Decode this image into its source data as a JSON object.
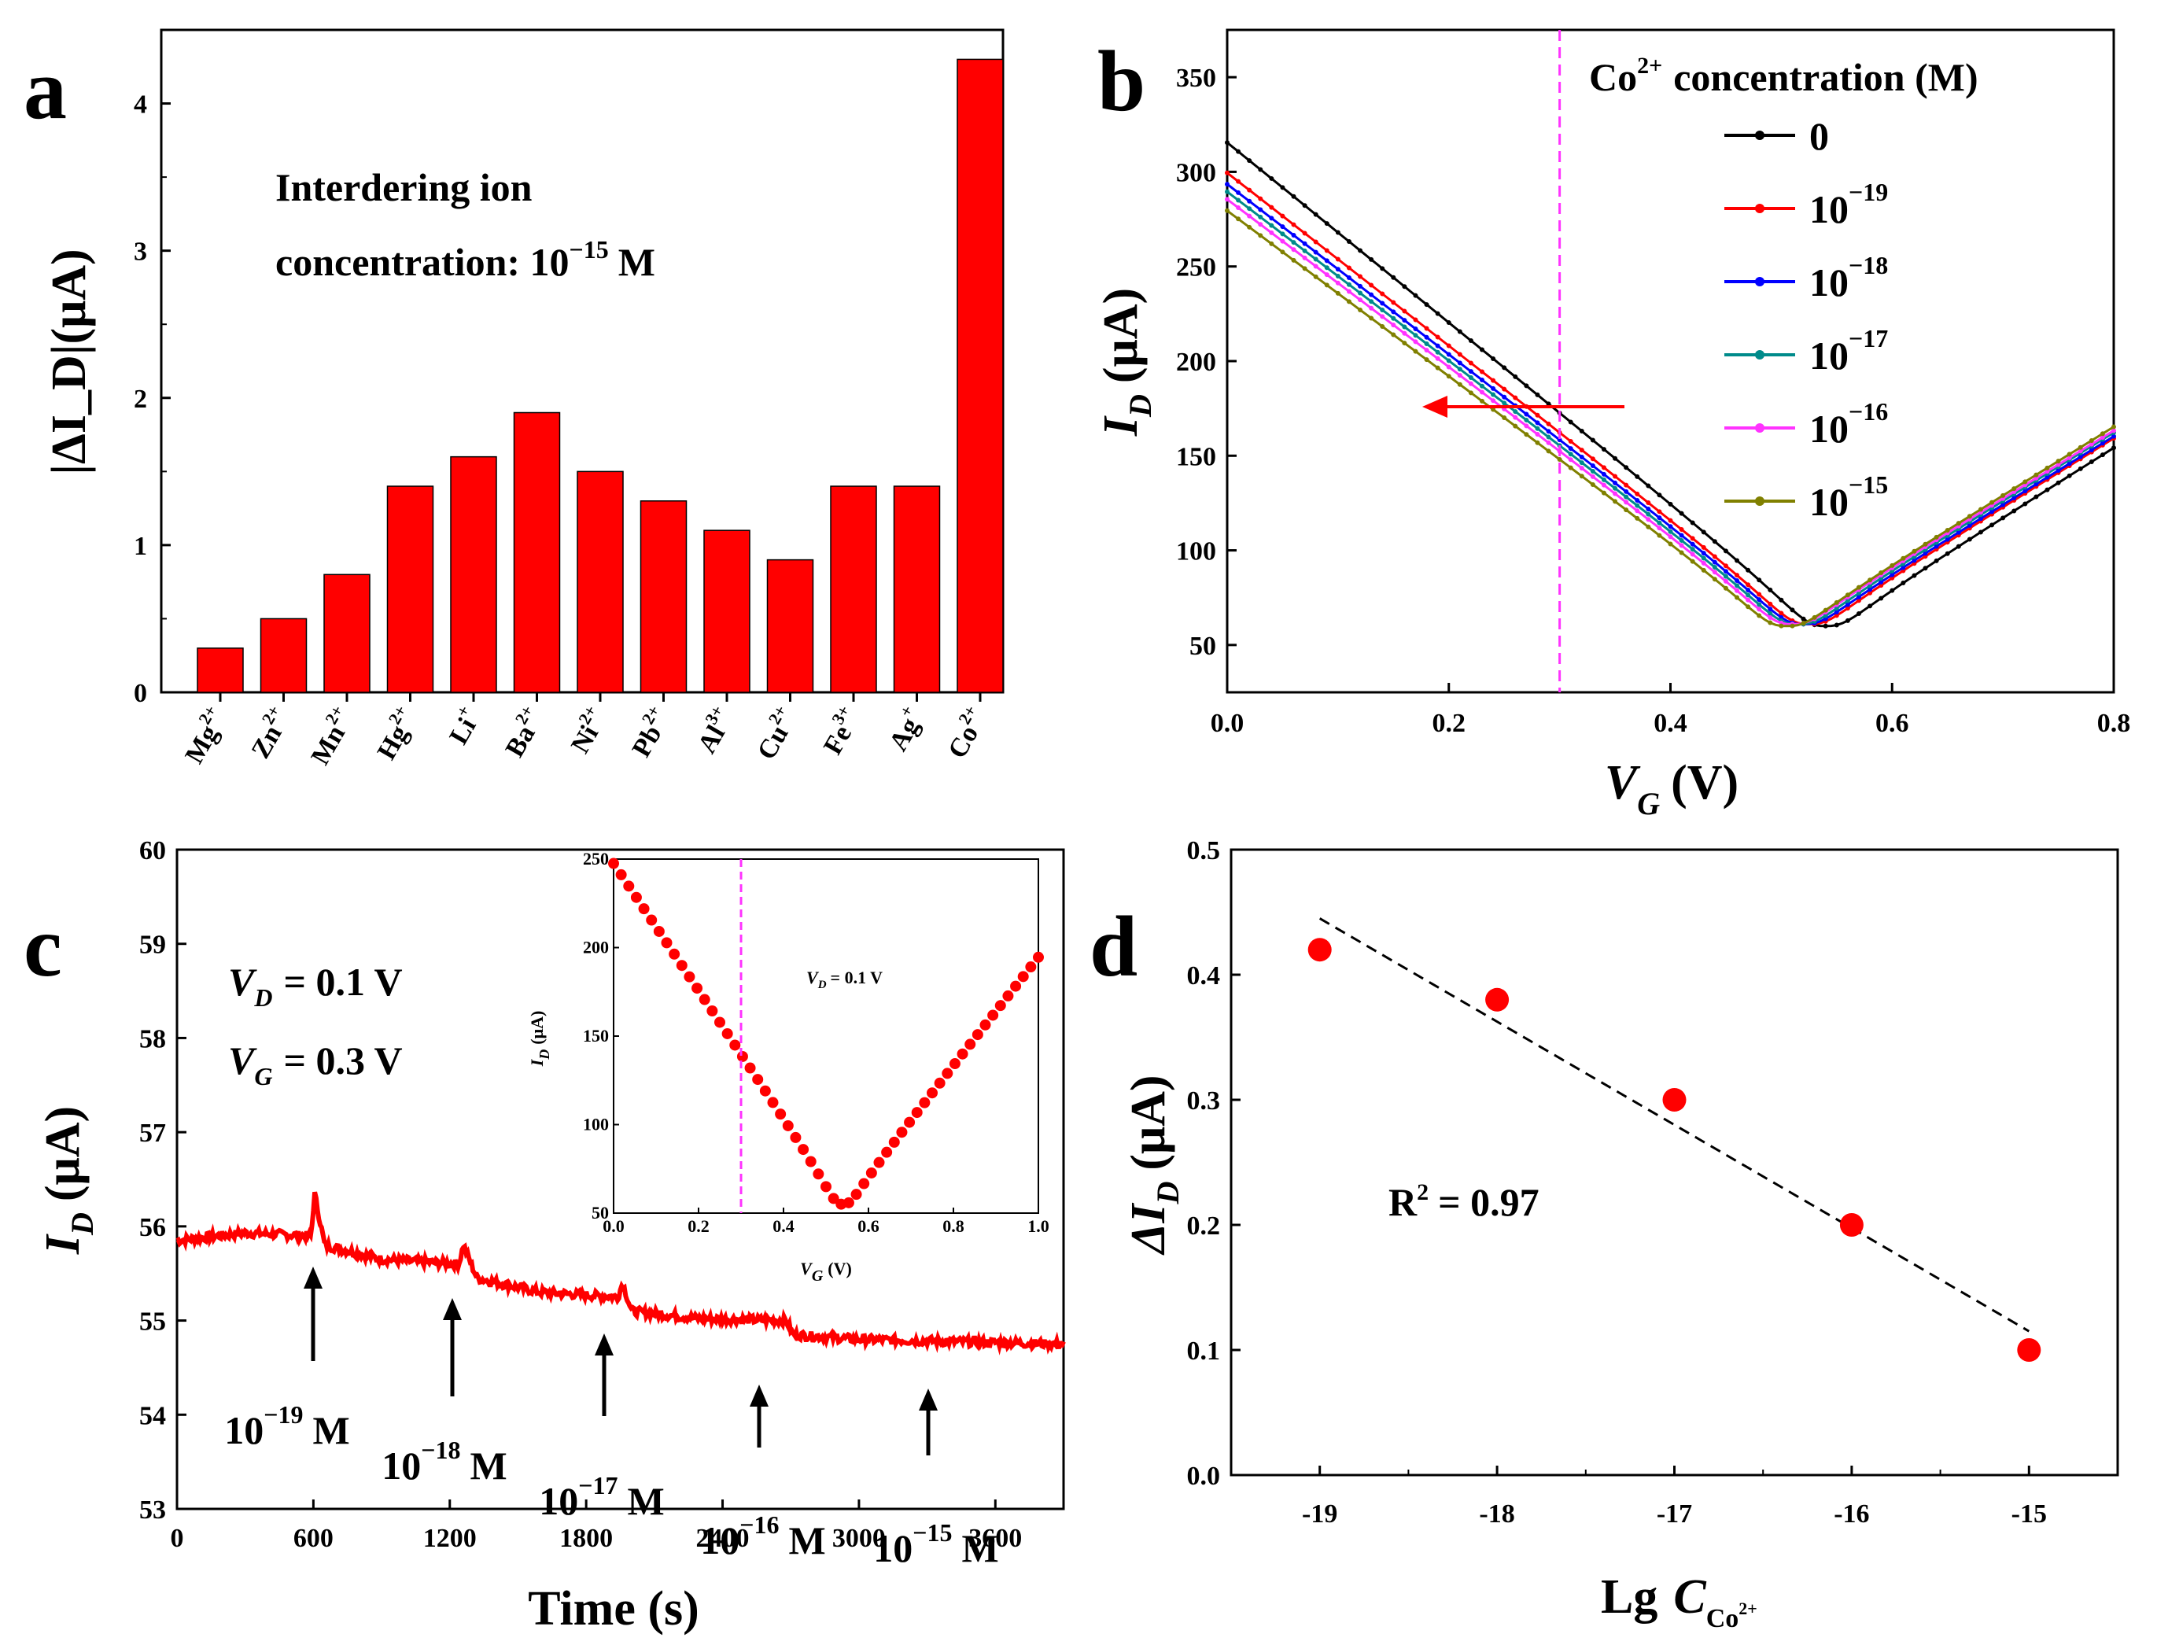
{
  "colors": {
    "red": "#ff0000",
    "magenta": "#ff33ff",
    "black": "#000000"
  },
  "chart_data": [
    {
      "panel": "a",
      "type": "bar",
      "annotation_line1": "Interdering ion",
      "annotation_line2": "concentration: 10",
      "annotation_exp": "−15",
      "annotation_unit": "M",
      "ylabel": "|ΔI_D|(μA)",
      "ylim": [
        0,
        4.5
      ],
      "yticks": [
        "0",
        "1",
        "2",
        "3",
        "4"
      ],
      "categories": [
        {
          "ion": "Mg",
          "charge": "2+",
          "value": 0.3
        },
        {
          "ion": "Zn",
          "charge": "2+",
          "value": 0.5
        },
        {
          "ion": "Mn",
          "charge": "2+",
          "value": 0.8
        },
        {
          "ion": "Hg",
          "charge": "2+",
          "value": 1.4
        },
        {
          "ion": "Li",
          "charge": "+",
          "value": 1.6
        },
        {
          "ion": "Ba",
          "charge": "2+",
          "value": 1.9
        },
        {
          "ion": "Ni",
          "charge": "2+",
          "value": 1.5
        },
        {
          "ion": "Pb",
          "charge": "2+",
          "value": 1.3
        },
        {
          "ion": "Al",
          "charge": "3+",
          "value": 1.1
        },
        {
          "ion": "Cu",
          "charge": "2+",
          "value": 0.9
        },
        {
          "ion": "Fe",
          "charge": "3+",
          "value": 1.4
        },
        {
          "ion": "Ag",
          "charge": "+",
          "value": 1.4
        },
        {
          "ion": "Co",
          "charge": "2+",
          "value": 4.3
        }
      ]
    },
    {
      "panel": "b",
      "type": "line",
      "xlabel_var": "V",
      "xlabel_sub": "G",
      "xlabel_unit": "(V)",
      "ylabel_var": "I",
      "ylabel_sub": "D",
      "ylabel_unit": "(μA)",
      "xlim": [
        0,
        0.8
      ],
      "ylim": [
        25,
        375
      ],
      "xticks": [
        "0.0",
        "0.2",
        "0.4",
        "0.6",
        "0.8"
      ],
      "yticks": [
        "50",
        "100",
        "150",
        "200",
        "250",
        "300",
        "350"
      ],
      "vline_x": 0.3,
      "legend_title_pre": "Co",
      "legend_title_sup": "2+",
      "legend_title_post": "concentration (M)",
      "series": [
        {
          "name": "0",
          "exp": "",
          "color": "#000000",
          "y0": 316,
          "xmin": 0.54,
          "ymin": 60,
          "y08": 155
        },
        {
          "name": "10",
          "exp": "−19",
          "color": "#ff0000",
          "y0": 300,
          "xmin": 0.525,
          "ymin": 61,
          "y08": 160
        },
        {
          "name": "10",
          "exp": "−18",
          "color": "#0000ff",
          "y0": 294,
          "xmin": 0.52,
          "ymin": 61,
          "y08": 161
        },
        {
          "name": "10",
          "exp": "−17",
          "color": "#008b8b",
          "y0": 290,
          "xmin": 0.515,
          "ymin": 61,
          "y08": 163
        },
        {
          "name": "10",
          "exp": "−16",
          "color": "#ff33ff",
          "y0": 286,
          "xmin": 0.51,
          "ymin": 61,
          "y08": 164
        },
        {
          "name": "10",
          "exp": "−15",
          "color": "#808000",
          "y0": 280,
          "xmin": 0.505,
          "ymin": 60,
          "y08": 166
        }
      ]
    },
    {
      "panel": "c",
      "type": "line",
      "xlabel": "Time (s)",
      "ylabel_var": "I",
      "ylabel_sub": "D",
      "ylabel_unit": "(μA)",
      "xlim": [
        0,
        3900
      ],
      "ylim": [
        53,
        60
      ],
      "xticks": [
        "0",
        "600",
        "1200",
        "1800",
        "2400",
        "3000",
        "3600"
      ],
      "yticks": [
        "53",
        "54",
        "55",
        "56",
        "57",
        "58",
        "59",
        "60"
      ],
      "conditions": [
        {
          "var": "V",
          "sub": "D",
          "text": "= 0.1 V"
        },
        {
          "var": "V",
          "sub": "G",
          "text": "= 0.3 V"
        }
      ],
      "trace": [
        [
          0,
          55.85
        ],
        [
          300,
          55.93
        ],
        [
          590,
          55.9
        ],
        [
          605,
          56.35
        ],
        [
          650,
          55.8
        ],
        [
          900,
          55.65
        ],
        [
          1240,
          55.6
        ],
        [
          1260,
          55.8
        ],
        [
          1320,
          55.45
        ],
        [
          1600,
          55.3
        ],
        [
          1940,
          55.25
        ],
        [
          1960,
          55.4
        ],
        [
          2000,
          55.1
        ],
        [
          2300,
          55.02
        ],
        [
          2680,
          55.0
        ],
        [
          2710,
          54.85
        ],
        [
          3000,
          54.8
        ],
        [
          3900,
          54.75
        ]
      ],
      "arrows": [
        {
          "x": 600,
          "label": "10",
          "exp": "−19",
          "unit": "M"
        },
        {
          "x": 1200,
          "label": "10",
          "exp": "−18",
          "unit": "M"
        },
        {
          "x": 1860,
          "label": "10",
          "exp": "−17",
          "unit": "M"
        },
        {
          "x": 2550,
          "label": "10",
          "exp": "−16",
          "unit": "M"
        },
        {
          "x": 3300,
          "label": "10",
          "exp": "−15",
          "unit": "M"
        }
      ],
      "inset": {
        "xlim": [
          0,
          1.0
        ],
        "ylim": [
          50,
          250
        ],
        "xticks": [
          "0.0",
          "0.2",
          "0.4",
          "0.6",
          "0.8",
          "1.0"
        ],
        "yticks": [
          "50",
          "100",
          "150",
          "200",
          "250"
        ],
        "xlabel_var": "V",
        "xlabel_sub": "G",
        "xlabel_unit": "(V)",
        "ylabel_var": "I",
        "ylabel_sub": "D",
        "ylabel_unit": "(μA)",
        "note_var": "V",
        "note_sub": "D",
        "note_text": "= 0.1 V",
        "vline_x": 0.3,
        "y0": 248,
        "xmin": 0.54,
        "ymin": 55,
        "y1": 195
      }
    },
    {
      "panel": "d",
      "type": "scatter",
      "xlabel_pre": "Lg",
      "xlabel_var": "C",
      "xlabel_sub": "Co",
      "xlabel_subsup": "2+",
      "ylabel_var": "ΔI",
      "ylabel_sub": "D",
      "ylabel_unit": "(μA)",
      "xlim": [
        -19.5,
        -14.5
      ],
      "ylim": [
        0.0,
        0.5
      ],
      "xticks": [
        "-19",
        "-18",
        "-17",
        "-16",
        "-15"
      ],
      "yticks": [
        "0.0",
        "0.1",
        "0.2",
        "0.3",
        "0.4",
        "0.5"
      ],
      "x": [
        -19,
        -18,
        -17,
        -16,
        -15
      ],
      "y": [
        0.42,
        0.38,
        0.3,
        0.2,
        0.1
      ],
      "fit": {
        "x": [
          -19,
          -15
        ],
        "y": [
          0.445,
          0.115
        ]
      },
      "r2_label": "R",
      "r2_sup": "2",
      "r2_value": "= 0.97"
    }
  ],
  "panel_labels": [
    "a",
    "b",
    "c",
    "d"
  ]
}
